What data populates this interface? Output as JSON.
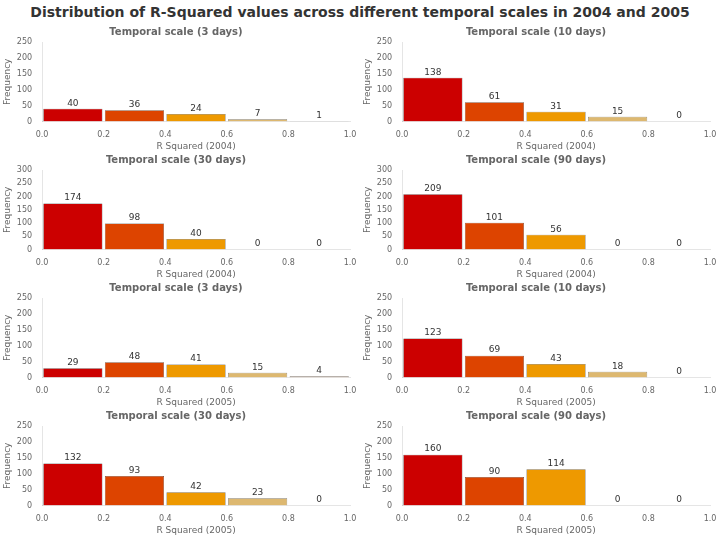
{
  "title": "Distribution of R-Squared values across different temporal scales in 2004 and 2005",
  "chart_data": [
    {
      "type": "histogram",
      "title": "Temporal scale (3 days)",
      "xlabel": "R Squared (2004)",
      "ylabel": "Frequency",
      "bins": [
        0.0,
        0.2,
        0.4,
        0.6,
        0.8,
        1.0
      ],
      "values": [
        40,
        36,
        24,
        7,
        1
      ],
      "colors": [
        "#CC0000",
        "#DD4400",
        "#EE9900",
        "#DDB870",
        "#CCAA88"
      ],
      "xlim": [
        0.0,
        1.0
      ],
      "xticks": [
        {
          "value": 0.0,
          "label": "0.0"
        },
        0.2,
        0.4,
        0.6,
        0.8,
        {
          "value": 1.0,
          "label": "1.0"
        }
      ],
      "ylim": [
        0,
        250
      ],
      "yticks": [
        0,
        50,
        100,
        150,
        200,
        250
      ],
      "grid": false,
      "data_labels": true
    },
    {
      "type": "histogram",
      "title": "Temporal scale (10 days)",
      "xlabel": "R Squared (2004)",
      "ylabel": "Frequency",
      "bins": [
        0.0,
        0.2,
        0.4,
        0.6,
        0.8,
        1.0
      ],
      "values": [
        138,
        61,
        31,
        15,
        0
      ],
      "colors": [
        "#CC0000",
        "#DD4400",
        "#EE9900",
        "#DDB870",
        "#CCAA88"
      ],
      "xlim": [
        0.0,
        1.0
      ],
      "xticks": [
        {
          "value": 0.0,
          "label": "0.0"
        },
        0.2,
        0.4,
        0.6,
        0.8,
        {
          "value": 1.0,
          "label": "1.0"
        }
      ],
      "ylim": [
        0,
        250
      ],
      "yticks": [
        0,
        50,
        100,
        150,
        200,
        250
      ],
      "grid": false,
      "data_labels": true
    },
    {
      "type": "histogram",
      "title": "Temporal scale (30 days)",
      "xlabel": "R Squared (2004)",
      "ylabel": "Frequency",
      "bins": [
        0.0,
        0.2,
        0.4,
        0.6,
        0.8,
        1.0
      ],
      "values": [
        174,
        98,
        40,
        0,
        0
      ],
      "colors": [
        "#CC0000",
        "#DD4400",
        "#EE9900",
        "#DDB870",
        "#CCAA88"
      ],
      "xlim": [
        0.0,
        1.0
      ],
      "xticks": [
        {
          "value": 0.0,
          "label": "0.0"
        },
        0.2,
        0.4,
        0.6,
        0.8,
        {
          "value": 1.0,
          "label": "1.0"
        }
      ],
      "ylim": [
        0,
        300
      ],
      "yticks": [
        0,
        50,
        100,
        150,
        200,
        250,
        300
      ],
      "grid": false,
      "data_labels": true
    },
    {
      "type": "histogram",
      "title": "Temporal scale (90 days)",
      "xlabel": "R Squared (2004)",
      "ylabel": "Frequency",
      "bins": [
        0.0,
        0.2,
        0.4,
        0.6,
        0.8,
        1.0
      ],
      "values": [
        209,
        101,
        56,
        0,
        0
      ],
      "colors": [
        "#CC0000",
        "#DD4400",
        "#EE9900",
        "#DDB870",
        "#CCAA88"
      ],
      "xlim": [
        0.0,
        1.0
      ],
      "xticks": [
        {
          "value": 0.0,
          "label": "0.0"
        },
        0.2,
        0.4,
        0.6,
        0.8,
        {
          "value": 1.0,
          "label": "1.0"
        }
      ],
      "ylim": [
        0,
        300
      ],
      "yticks": [
        0,
        50,
        100,
        150,
        200,
        250,
        300
      ],
      "grid": false,
      "data_labels": true
    },
    {
      "type": "histogram",
      "title": "Temporal scale (3 days)",
      "xlabel": "R Squared (2005)",
      "ylabel": "Frequency",
      "bins": [
        0.0,
        0.2,
        0.4,
        0.6,
        0.8,
        1.0
      ],
      "values": [
        29,
        48,
        41,
        15,
        4
      ],
      "colors": [
        "#CC0000",
        "#DD4400",
        "#EE9900",
        "#DDB870",
        "#CCAA88"
      ],
      "xlim": [
        0.0,
        1.0
      ],
      "xticks": [
        {
          "value": 0.0,
          "label": "0.0"
        },
        0.2,
        0.4,
        0.6,
        0.8,
        {
          "value": 1.0,
          "label": "1.0"
        }
      ],
      "ylim": [
        0,
        250
      ],
      "yticks": [
        0,
        50,
        100,
        150,
        200,
        250
      ],
      "grid": false,
      "data_labels": true
    },
    {
      "type": "histogram",
      "title": "Temporal scale (10 days)",
      "xlabel": "R Squared (2005)",
      "ylabel": "Frequency",
      "bins": [
        0.0,
        0.2,
        0.4,
        0.6,
        0.8,
        1.0
      ],
      "values": [
        123,
        69,
        43,
        18,
        0
      ],
      "colors": [
        "#CC0000",
        "#DD4400",
        "#EE9900",
        "#DDB870",
        "#CCAA88"
      ],
      "xlim": [
        0.0,
        1.0
      ],
      "xticks": [
        {
          "value": 0.0,
          "label": "0.0"
        },
        0.2,
        0.4,
        0.6,
        0.8,
        {
          "value": 1.0,
          "label": "1.0"
        }
      ],
      "ylim": [
        0,
        250
      ],
      "yticks": [
        0,
        50,
        100,
        150,
        200,
        250
      ],
      "grid": false,
      "data_labels": true
    },
    {
      "type": "histogram",
      "title": "Temporal scale (30 days)",
      "xlabel": "R Squared (2005)",
      "ylabel": "Frequency",
      "bins": [
        0.0,
        0.2,
        0.4,
        0.6,
        0.8,
        1.0
      ],
      "values": [
        132,
        93,
        42,
        23,
        0
      ],
      "colors": [
        "#CC0000",
        "#DD4400",
        "#EE9900",
        "#DDB870",
        "#CCAA88"
      ],
      "xlim": [
        0.0,
        1.0
      ],
      "xticks": [
        {
          "value": 0.0,
          "label": "0.0"
        },
        0.2,
        0.4,
        0.6,
        0.8,
        {
          "value": 1.0,
          "label": "1.0"
        }
      ],
      "ylim": [
        0,
        250
      ],
      "yticks": [
        0,
        50,
        100,
        150,
        200,
        250
      ],
      "grid": false,
      "data_labels": true
    },
    {
      "type": "histogram",
      "title": "Temporal scale (90 days)",
      "xlabel": "R Squared (2005)",
      "ylabel": "Frequency",
      "bins": [
        0.0,
        0.2,
        0.4,
        0.6,
        0.8,
        1.0
      ],
      "values": [
        160,
        90,
        114,
        0,
        0
      ],
      "colors": [
        "#CC0000",
        "#DD4400",
        "#EE9900",
        "#DDB870",
        "#CCAA88"
      ],
      "xlim": [
        0.0,
        1.0
      ],
      "xticks": [
        {
          "value": 0.0,
          "label": "0.0"
        },
        0.2,
        0.4,
        0.6,
        0.8,
        {
          "value": 1.0,
          "label": "1.0"
        }
      ],
      "ylim": [
        0,
        250
      ],
      "yticks": [
        0,
        50,
        100,
        150,
        200,
        250
      ],
      "grid": false,
      "data_labels": true
    }
  ]
}
